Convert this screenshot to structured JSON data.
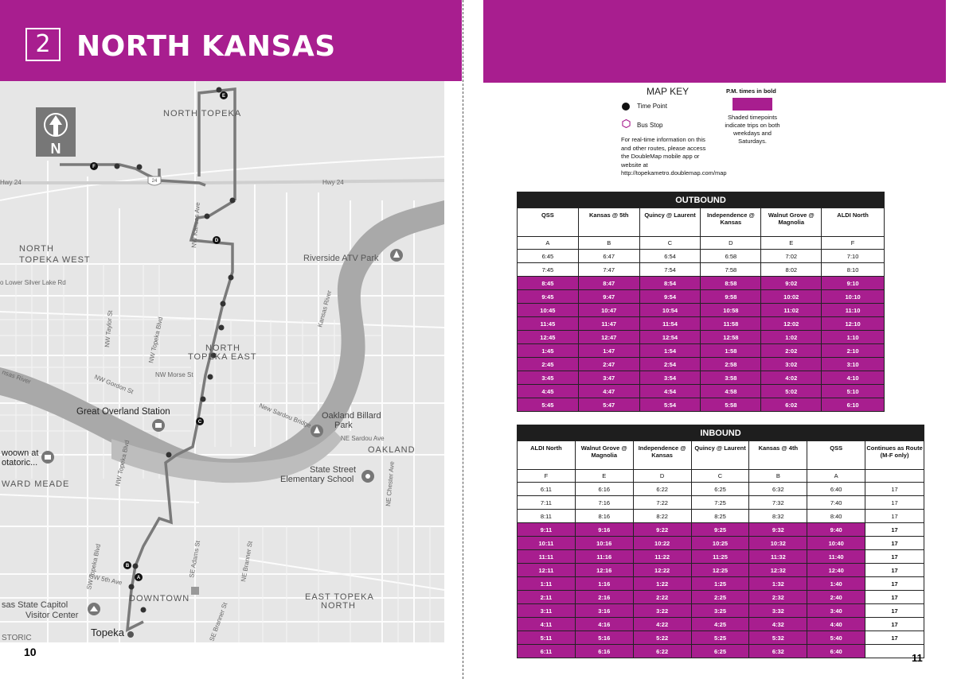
{
  "left_page": {
    "route_number": "2",
    "route_name": "NORTH KANSAS",
    "page_number": "10",
    "map": {
      "north_label": "N",
      "places": [
        "NORTH TOPEKA",
        "NORTH TOPEKA WEST",
        "NORTH TOPEKA EAST",
        "Riverside ATV Park",
        "Great Overland Station",
        "Oakland Billard Park",
        "OAKLAND",
        "State Street Elementary School",
        "DOWNTOWN",
        "EAST TOPEKA NORTH",
        "Kansas State Capitol Visitor Center",
        "Topeka",
        "WARD MEADE",
        "Kansas River",
        "Hwy 24",
        "NW Morse St",
        "NW Gordon St",
        "New Sardou Bridge",
        "NE Sardou Ave",
        "NW Topeka Blvd",
        "NW Taylor St",
        "SW Topeka Blvd",
        "SW 5th Ave",
        "SE Adams St",
        "NE Chester Ave",
        "NE Branner St",
        "SE Branner St",
        "NW Lower Silver Lake Rd",
        "NE Kansas Ave",
        "NW Kansas Ave"
      ],
      "place_texts": {
        "north_topeka": "NORTH TOPEKA",
        "north_topeka_west_1": "NORTH",
        "north_topeka_west_2": "TOPEKA WEST",
        "north_topeka_east_1": "NORTH",
        "north_topeka_east_2": "TOPEKA EAST",
        "riverside": "Riverside ATV Park",
        "great_overland": "Great Overland Station",
        "oakland_billard_1": "Oakland Billard",
        "oakland_billard_2": "Park",
        "oakland": "OAKLAND",
        "state_street_1": "State Street",
        "state_street_2": "Elementary School",
        "downtown": "DOWNTOWN",
        "east_topeka_1": "EAST TOPEKA",
        "east_topeka_2": "NORTH",
        "capitol_1": "sas State Capitol",
        "capitol_2": "Visitor Center",
        "topeka": "Topeka",
        "ward_meade": "WARD MEADE",
        "kansas_river": "Kansas River",
        "kansas_river_2": "nsas River",
        "hwy24_right": "Hwy 24",
        "hwy24_left": "Hwy 24",
        "morse": "NW Morse St",
        "gordon": "NW Gordon St",
        "sardou_bridge": "New Sardou Bridge",
        "sardou_ave": "NE Sardou Ave",
        "topeka_blvd_n": "NW Topeka Blvd",
        "topeka_blvd_mid": "NW Topeka Blvd",
        "taylor": "NW Taylor St",
        "sw_topeka": "SW Topeka Blvd",
        "sw_5th": "SW 5th Ave",
        "adams": "SE Adams St",
        "chester": "NE Chester Ave",
        "branner": "NE Branner St",
        "se_branner": "SE Branner St",
        "silver_lake": "o Lower Silver Lake Rd",
        "kansas_ave": "NW Kansas Ave",
        "woown": "woown at",
        "otatoric": "otatoric...",
        "storic": "STORIC",
        "hwy_shield": "24"
      },
      "timepoint_letters": [
        "A",
        "B",
        "C",
        "D",
        "E",
        "F"
      ]
    }
  },
  "right_page": {
    "page_number": "11",
    "map_key": {
      "title": "MAP KEY",
      "time_point": "Time Point",
      "bus_stop": "Bus Stop",
      "info": "For real-time information on this and other routes, please access the DoubleMap mobile app or website at http://topekametro.doublemap.com/map",
      "pm_title": "P.M. times in bold",
      "pm_note": "Shaded timepoints indicate trips on both weekdays and Saturdays."
    },
    "outbound": {
      "title": "OUTBOUND",
      "headers": [
        "QSS",
        "Kansas @ 5th",
        "Quincy @ Laurent",
        "Independence @ Kansas",
        "Walnut Grove @ Magnolia",
        "ALDI North"
      ],
      "letters": [
        "A",
        "B",
        "C",
        "D",
        "E",
        "F"
      ],
      "rows": [
        {
          "shaded": false,
          "cells": [
            "6:45",
            "6:47",
            "6:54",
            "6:58",
            "7:02",
            "7:10"
          ]
        },
        {
          "shaded": false,
          "cells": [
            "7:45",
            "7:47",
            "7:54",
            "7:58",
            "8:02",
            "8:10"
          ]
        },
        {
          "shaded": true,
          "cells": [
            "8:45",
            "8:47",
            "8:54",
            "8:58",
            "9:02",
            "9:10"
          ]
        },
        {
          "shaded": true,
          "cells": [
            "9:45",
            "9:47",
            "9:54",
            "9:58",
            "10:02",
            "10:10"
          ]
        },
        {
          "shaded": true,
          "cells": [
            "10:45",
            "10:47",
            "10:54",
            "10:58",
            "11:02",
            "11:10"
          ]
        },
        {
          "shaded": true,
          "cells": [
            "11:45",
            "11:47",
            "11:54",
            "11:58",
            "12:02",
            "12:10"
          ]
        },
        {
          "shaded": true,
          "cells": [
            "12:45",
            "12:47",
            "12:54",
            "12:58",
            "1:02",
            "1:10"
          ]
        },
        {
          "shaded": true,
          "cells": [
            "1:45",
            "1:47",
            "1:54",
            "1:58",
            "2:02",
            "2:10"
          ]
        },
        {
          "shaded": true,
          "cells": [
            "2:45",
            "2:47",
            "2:54",
            "2:58",
            "3:02",
            "3:10"
          ]
        },
        {
          "shaded": true,
          "cells": [
            "3:45",
            "3:47",
            "3:54",
            "3:58",
            "4:02",
            "4:10"
          ]
        },
        {
          "shaded": true,
          "cells": [
            "4:45",
            "4:47",
            "4:54",
            "4:58",
            "5:02",
            "5:10"
          ]
        },
        {
          "shaded": true,
          "cells": [
            "5:45",
            "5:47",
            "5:54",
            "5:58",
            "6:02",
            "6:10"
          ]
        }
      ]
    },
    "inbound": {
      "title": "INBOUND",
      "headers": [
        "ALDI North",
        "Walnut Grove @ Magnolia",
        "Independence @ Kansas",
        "Quincy @ Laurent",
        "Kansas @ 4th",
        "QSS",
        "Continues as Route (M-F only)"
      ],
      "letters": [
        "F",
        "E",
        "D",
        "C",
        "B",
        "A",
        ""
      ],
      "rows": [
        {
          "shaded": false,
          "cells": [
            "6:11",
            "6:16",
            "6:22",
            "6:25",
            "6:32",
            "6:40",
            "17"
          ]
        },
        {
          "shaded": false,
          "cells": [
            "7:11",
            "7:16",
            "7:22",
            "7:25",
            "7:32",
            "7:40",
            "17"
          ]
        },
        {
          "shaded": false,
          "cells": [
            "8:11",
            "8:16",
            "8:22",
            "8:25",
            "8:32",
            "8:40",
            "17"
          ]
        },
        {
          "shaded": true,
          "cells": [
            "9:11",
            "9:16",
            "9:22",
            "9:25",
            "9:32",
            "9:40",
            "17"
          ]
        },
        {
          "shaded": true,
          "cells": [
            "10:11",
            "10:16",
            "10:22",
            "10:25",
            "10:32",
            "10:40",
            "17"
          ]
        },
        {
          "shaded": true,
          "cells": [
            "11:11",
            "11:16",
            "11:22",
            "11:25",
            "11:32",
            "11:40",
            "17"
          ]
        },
        {
          "shaded": true,
          "cells": [
            "12:11",
            "12:16",
            "12:22",
            "12:25",
            "12:32",
            "12:40",
            "17"
          ]
        },
        {
          "shaded": true,
          "cells": [
            "1:11",
            "1:16",
            "1:22",
            "1:25",
            "1:32",
            "1:40",
            "17"
          ]
        },
        {
          "shaded": true,
          "cells": [
            "2:11",
            "2:16",
            "2:22",
            "2:25",
            "2:32",
            "2:40",
            "17"
          ]
        },
        {
          "shaded": true,
          "cells": [
            "3:11",
            "3:16",
            "3:22",
            "3:25",
            "3:32",
            "3:40",
            "17"
          ]
        },
        {
          "shaded": true,
          "cells": [
            "4:11",
            "4:16",
            "4:22",
            "4:25",
            "4:32",
            "4:40",
            "17"
          ]
        },
        {
          "shaded": true,
          "cells": [
            "5:11",
            "5:16",
            "5:22",
            "5:25",
            "5:32",
            "5:40",
            "17"
          ]
        },
        {
          "shaded": true,
          "cells": [
            "6:11",
            "6:16",
            "6:22",
            "6:25",
            "6:32",
            "6:40",
            ""
          ]
        }
      ]
    }
  },
  "colors": {
    "brand": "#a81e8f",
    "header_dark": "#1e1e1e",
    "map_bg": "#e6e6e6",
    "river": "#a9a9a9"
  }
}
